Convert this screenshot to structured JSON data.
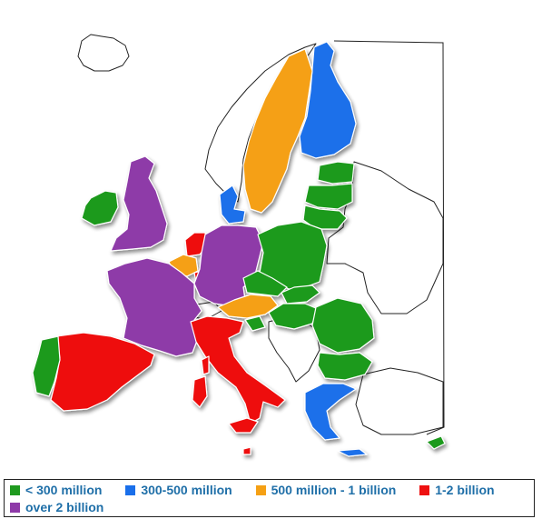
{
  "colors": {
    "lt300m": "#1f9a1f",
    "m300_500": "#1a6fea",
    "m500_1b": "#f5a014",
    "b1_2": "#ee1111",
    "over2b": "#8e3aa8",
    "nondata": "#ffffff",
    "legend_text": "#1f6fa8"
  },
  "legend": {
    "items": [
      {
        "label": "< 300 million",
        "color_key": "lt300m",
        "icon": "green-square"
      },
      {
        "label": "300-500 million",
        "color_key": "m300_500",
        "icon": "blue-square"
      },
      {
        "label": "500 million - 1 billion",
        "color_key": "m500_1b",
        "icon": "orange-square"
      },
      {
        "label": "1-2 billion",
        "color_key": "b1_2",
        "icon": "red-square"
      },
      {
        "label": "over 2 billion",
        "color_key": "over2b",
        "icon": "purple-square"
      }
    ]
  },
  "regions": [
    {
      "name": "Finland",
      "category": "m300_500"
    },
    {
      "name": "Sweden",
      "category": "m500_1b"
    },
    {
      "name": "Norway",
      "category": "nondata"
    },
    {
      "name": "Iceland",
      "category": "nondata"
    },
    {
      "name": "Estonia",
      "category": "lt300m"
    },
    {
      "name": "Latvia",
      "category": "lt300m"
    },
    {
      "name": "Lithuania",
      "category": "lt300m"
    },
    {
      "name": "Denmark",
      "category": "m300_500"
    },
    {
      "name": "Ireland",
      "category": "lt300m"
    },
    {
      "name": "United Kingdom",
      "category": "over2b"
    },
    {
      "name": "Netherlands",
      "category": "b1_2"
    },
    {
      "name": "Belgium",
      "category": "m500_1b"
    },
    {
      "name": "Germany",
      "category": "over2b"
    },
    {
      "name": "Poland",
      "category": "lt300m"
    },
    {
      "name": "Czech Republic",
      "category": "lt300m"
    },
    {
      "name": "Slovakia",
      "category": "lt300m"
    },
    {
      "name": "Austria",
      "category": "m500_1b"
    },
    {
      "name": "Hungary",
      "category": "lt300m"
    },
    {
      "name": "Slovenia",
      "category": "lt300m"
    },
    {
      "name": "Romania",
      "category": "lt300m"
    },
    {
      "name": "Bulgaria",
      "category": "lt300m"
    },
    {
      "name": "France",
      "category": "over2b"
    },
    {
      "name": "Italy",
      "category": "b1_2"
    },
    {
      "name": "Spain",
      "category": "b1_2"
    },
    {
      "name": "Portugal",
      "category": "lt300m"
    },
    {
      "name": "Greece",
      "category": "m300_500"
    },
    {
      "name": "Cyprus",
      "category": "lt300m"
    },
    {
      "name": "Malta",
      "category": "b1_2"
    },
    {
      "name": "Luxembourg",
      "category": "b1_2"
    }
  ]
}
